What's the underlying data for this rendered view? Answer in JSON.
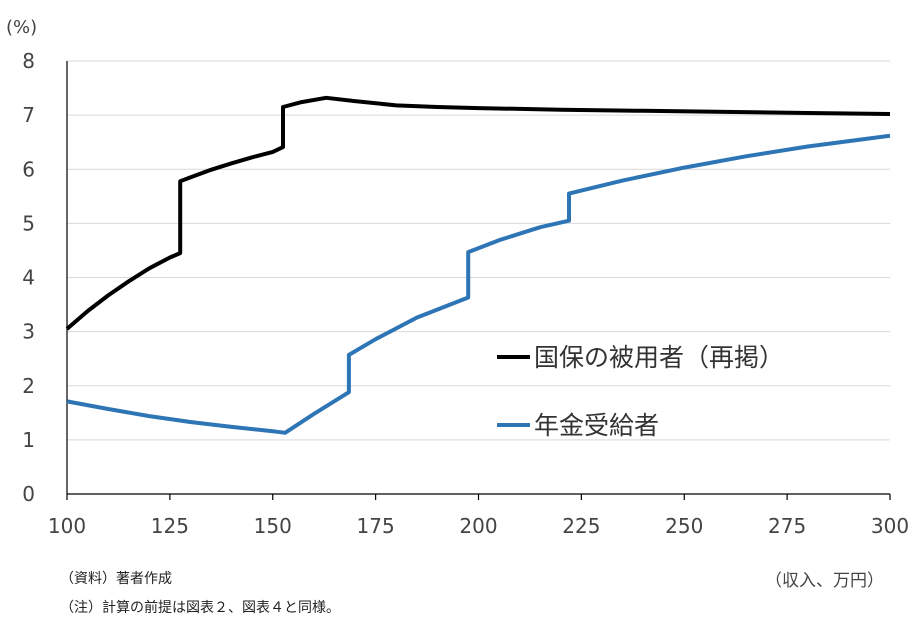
{
  "chart_data": {
    "type": "line",
    "ylabel": "(%)",
    "xlabel": "（収入、万円）",
    "xlim": [
      100,
      300
    ],
    "ylim": [
      0,
      8
    ],
    "x_ticks": [
      100,
      125,
      150,
      175,
      200,
      225,
      250,
      275,
      300
    ],
    "y_ticks": [
      0,
      1,
      2,
      3,
      4,
      5,
      6,
      7,
      8
    ],
    "grid": "horizontal",
    "legend_position": "right-center",
    "series": [
      {
        "name": "国保の被用者（再掲）",
        "color": "#000000",
        "points": [
          [
            100,
            3.05
          ],
          [
            105,
            3.38
          ],
          [
            110,
            3.67
          ],
          [
            115,
            3.93
          ],
          [
            120,
            4.17
          ],
          [
            125,
            4.37
          ],
          [
            127.5,
            4.45
          ],
          [
            127.5,
            5.78
          ],
          [
            130,
            5.85
          ],
          [
            135,
            5.99
          ],
          [
            140,
            6.11
          ],
          [
            145,
            6.22
          ],
          [
            150,
            6.32
          ],
          [
            152.5,
            6.41
          ],
          [
            152.5,
            7.15
          ],
          [
            157,
            7.24
          ],
          [
            163,
            7.32
          ],
          [
            170,
            7.26
          ],
          [
            180,
            7.18
          ],
          [
            190,
            7.15
          ],
          [
            200,
            7.13
          ],
          [
            220,
            7.1
          ],
          [
            240,
            7.08
          ],
          [
            260,
            7.06
          ],
          [
            280,
            7.04
          ],
          [
            300,
            7.02
          ]
        ]
      },
      {
        "name": "年金受給者",
        "color": "#2e75b6",
        "points": [
          [
            100,
            1.71
          ],
          [
            110,
            1.57
          ],
          [
            120,
            1.44
          ],
          [
            130,
            1.33
          ],
          [
            140,
            1.24
          ],
          [
            150,
            1.16
          ],
          [
            153,
            1.13
          ],
          [
            160,
            1.48
          ],
          [
            168.5,
            1.88
          ],
          [
            168.5,
            2.57
          ],
          [
            175,
            2.86
          ],
          [
            185,
            3.26
          ],
          [
            197.5,
            3.63
          ],
          [
            197.5,
            4.47
          ],
          [
            205,
            4.69
          ],
          [
            215,
            4.93
          ],
          [
            222,
            5.05
          ],
          [
            222,
            5.55
          ],
          [
            235,
            5.79
          ],
          [
            250,
            6.03
          ],
          [
            265,
            6.24
          ],
          [
            280,
            6.42
          ],
          [
            290,
            6.52
          ],
          [
            300,
            6.62
          ]
        ]
      }
    ]
  },
  "notes": {
    "source": "（資料）著者作成",
    "note": "（注）計算の前提は図表２、図表４と同様。"
  }
}
